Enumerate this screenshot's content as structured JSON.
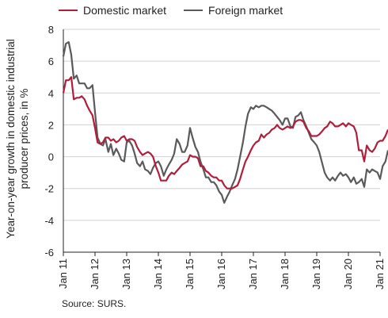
{
  "chart_data": {
    "type": "line",
    "xlabel": "",
    "ylabel": "Year-on-year growth in domestic industrial producer prices, in %",
    "ylim": [
      -6,
      8
    ],
    "yticks": [
      -6,
      -4,
      -2,
      0,
      2,
      4,
      6,
      8
    ],
    "xlim": [
      2011,
      2021
    ],
    "xticks": [
      "Jan 11",
      "Jan 12",
      "Jan 13",
      "Jan 14",
      "Jan 15",
      "Jan 16",
      "Jan 17",
      "Jan 18",
      "Jan 19",
      "Jan 20",
      "Jan 21"
    ],
    "grid": true,
    "legend_position": "top",
    "source": "Source: SURS.",
    "series": [
      {
        "name": "Domestic market",
        "color": "#b01e3c",
        "points": [
          [
            2011.0,
            4.0
          ],
          [
            2011.08,
            4.8
          ],
          [
            2011.17,
            4.8
          ],
          [
            2011.25,
            5.0
          ],
          [
            2011.33,
            3.6
          ],
          [
            2011.42,
            3.7
          ],
          [
            2011.5,
            3.7
          ],
          [
            2011.58,
            3.8
          ],
          [
            2011.67,
            3.6
          ],
          [
            2011.75,
            3.2
          ],
          [
            2011.83,
            2.9
          ],
          [
            2011.92,
            2.6
          ],
          [
            2012.0,
            1.8
          ],
          [
            2012.08,
            0.9
          ],
          [
            2012.17,
            0.8
          ],
          [
            2012.25,
            0.9
          ],
          [
            2012.33,
            1.2
          ],
          [
            2012.42,
            1.2
          ],
          [
            2012.5,
            1.0
          ],
          [
            2012.58,
            1.1
          ],
          [
            2012.67,
            0.9
          ],
          [
            2012.75,
            1.0
          ],
          [
            2012.83,
            1.2
          ],
          [
            2012.92,
            1.3
          ],
          [
            2013.0,
            1.0
          ],
          [
            2013.08,
            1.1
          ],
          [
            2013.17,
            1.1
          ],
          [
            2013.25,
            1.0
          ],
          [
            2013.33,
            0.6
          ],
          [
            2013.42,
            0.3
          ],
          [
            2013.5,
            0.1
          ],
          [
            2013.58,
            0.2
          ],
          [
            2013.67,
            0.3
          ],
          [
            2013.75,
            0.2
          ],
          [
            2013.83,
            0.0
          ],
          [
            2013.92,
            -0.6
          ],
          [
            2014.0,
            -1.0
          ],
          [
            2014.08,
            -1.5
          ],
          [
            2014.17,
            -1.5
          ],
          [
            2014.25,
            -1.5
          ],
          [
            2014.33,
            -1.2
          ],
          [
            2014.42,
            -1.0
          ],
          [
            2014.5,
            -1.1
          ],
          [
            2014.58,
            -0.9
          ],
          [
            2014.67,
            -0.7
          ],
          [
            2014.75,
            -0.5
          ],
          [
            2014.83,
            -0.4
          ],
          [
            2014.92,
            -0.3
          ],
          [
            2015.0,
            0.1
          ],
          [
            2015.08,
            0.0
          ],
          [
            2015.17,
            0.0
          ],
          [
            2015.25,
            -0.1
          ],
          [
            2015.33,
            -0.6
          ],
          [
            2015.42,
            -0.6
          ],
          [
            2015.5,
            -0.9
          ],
          [
            2015.58,
            -1.0
          ],
          [
            2015.67,
            -1.2
          ],
          [
            2015.75,
            -1.3
          ],
          [
            2015.83,
            -1.3
          ],
          [
            2015.92,
            -1.5
          ],
          [
            2016.0,
            -1.5
          ],
          [
            2016.08,
            -1.8
          ],
          [
            2016.17,
            -2.0
          ],
          [
            2016.25,
            -2.0
          ],
          [
            2016.33,
            -2.0
          ],
          [
            2016.42,
            -1.9
          ],
          [
            2016.5,
            -1.8
          ],
          [
            2016.58,
            -1.4
          ],
          [
            2016.67,
            -0.8
          ],
          [
            2016.75,
            -0.3
          ],
          [
            2016.83,
            0.0
          ],
          [
            2016.92,
            0.4
          ],
          [
            2017.0,
            0.7
          ],
          [
            2017.08,
            0.9
          ],
          [
            2017.17,
            1.0
          ],
          [
            2017.25,
            1.4
          ],
          [
            2017.33,
            1.2
          ],
          [
            2017.42,
            1.4
          ],
          [
            2017.5,
            1.5
          ],
          [
            2017.58,
            1.7
          ],
          [
            2017.67,
            1.8
          ],
          [
            2017.75,
            2.0
          ],
          [
            2017.83,
            1.8
          ],
          [
            2017.92,
            1.7
          ],
          [
            2018.0,
            1.8
          ],
          [
            2018.08,
            1.9
          ],
          [
            2018.17,
            1.8
          ],
          [
            2018.25,
            1.9
          ],
          [
            2018.33,
            2.2
          ],
          [
            2018.42,
            2.3
          ],
          [
            2018.5,
            2.3
          ],
          [
            2018.58,
            2.2
          ],
          [
            2018.67,
            1.8
          ],
          [
            2018.75,
            1.6
          ],
          [
            2018.83,
            1.3
          ],
          [
            2018.92,
            1.3
          ],
          [
            2019.0,
            1.3
          ],
          [
            2019.08,
            1.4
          ],
          [
            2019.17,
            1.6
          ],
          [
            2019.25,
            1.8
          ],
          [
            2019.33,
            1.9
          ],
          [
            2019.42,
            2.2
          ],
          [
            2019.5,
            2.1
          ],
          [
            2019.58,
            1.9
          ],
          [
            2019.67,
            1.9
          ],
          [
            2019.75,
            2.0
          ],
          [
            2019.83,
            2.1
          ],
          [
            2019.92,
            1.9
          ],
          [
            2020.0,
            2.1
          ],
          [
            2020.08,
            2.0
          ],
          [
            2020.17,
            1.9
          ],
          [
            2020.25,
            1.5
          ],
          [
            2020.33,
            0.4
          ],
          [
            2020.42,
            0.4
          ],
          [
            2020.5,
            -0.3
          ],
          [
            2020.58,
            0.7
          ],
          [
            2020.67,
            0.4
          ],
          [
            2020.75,
            0.3
          ],
          [
            2020.83,
            0.5
          ],
          [
            2020.92,
            0.9
          ],
          [
            2021.0,
            1.0
          ],
          [
            2021.08,
            1.0
          ],
          [
            2021.17,
            1.3
          ],
          [
            2021.25,
            1.7
          ]
        ]
      },
      {
        "name": "Foreign market",
        "color": "#5a5a5a",
        "points": [
          [
            2011.0,
            6.3
          ],
          [
            2011.08,
            7.1
          ],
          [
            2011.17,
            7.2
          ],
          [
            2011.25,
            6.4
          ],
          [
            2011.33,
            4.9
          ],
          [
            2011.42,
            5.1
          ],
          [
            2011.5,
            4.6
          ],
          [
            2011.58,
            4.6
          ],
          [
            2011.67,
            4.6
          ],
          [
            2011.75,
            4.3
          ],
          [
            2011.83,
            4.3
          ],
          [
            2011.92,
            4.5
          ],
          [
            2012.0,
            2.8
          ],
          [
            2012.08,
            1.2
          ],
          [
            2012.17,
            0.8
          ],
          [
            2012.25,
            0.7
          ],
          [
            2012.33,
            1.1
          ],
          [
            2012.42,
            0.3
          ],
          [
            2012.5,
            0.8
          ],
          [
            2012.58,
            0.1
          ],
          [
            2012.67,
            0.5
          ],
          [
            2012.75,
            0.2
          ],
          [
            2012.83,
            -0.2
          ],
          [
            2012.92,
            -0.3
          ],
          [
            2013.0,
            0.9
          ],
          [
            2013.08,
            1.0
          ],
          [
            2013.17,
            0.7
          ],
          [
            2013.25,
            0.2
          ],
          [
            2013.33,
            -0.4
          ],
          [
            2013.42,
            -0.6
          ],
          [
            2013.5,
            -0.3
          ],
          [
            2013.58,
            -0.8
          ],
          [
            2013.67,
            -0.9
          ],
          [
            2013.75,
            -1.1
          ],
          [
            2013.83,
            -0.7
          ],
          [
            2013.92,
            -0.4
          ],
          [
            2014.0,
            -0.3
          ],
          [
            2014.08,
            -0.6
          ],
          [
            2014.17,
            -1.2
          ],
          [
            2014.25,
            -0.8
          ],
          [
            2014.33,
            -0.5
          ],
          [
            2014.42,
            -0.2
          ],
          [
            2014.5,
            0.2
          ],
          [
            2014.58,
            1.1
          ],
          [
            2014.67,
            0.8
          ],
          [
            2014.75,
            0.3
          ],
          [
            2014.83,
            0.3
          ],
          [
            2014.92,
            0.7
          ],
          [
            2015.0,
            1.8
          ],
          [
            2015.08,
            1.2
          ],
          [
            2015.17,
            0.6
          ],
          [
            2015.25,
            0.3
          ],
          [
            2015.33,
            -0.3
          ],
          [
            2015.42,
            -0.8
          ],
          [
            2015.5,
            -1.3
          ],
          [
            2015.58,
            -1.3
          ],
          [
            2015.67,
            -1.6
          ],
          [
            2015.75,
            -1.6
          ],
          [
            2015.83,
            -1.8
          ],
          [
            2015.92,
            -2.2
          ],
          [
            2016.0,
            -2.4
          ],
          [
            2016.08,
            -2.9
          ],
          [
            2016.17,
            -2.5
          ],
          [
            2016.25,
            -2.2
          ],
          [
            2016.33,
            -1.8
          ],
          [
            2016.42,
            -1.4
          ],
          [
            2016.5,
            -0.8
          ],
          [
            2016.58,
            0.0
          ],
          [
            2016.67,
            0.9
          ],
          [
            2016.75,
            1.9
          ],
          [
            2016.83,
            2.7
          ],
          [
            2016.92,
            3.1
          ],
          [
            2017.0,
            3.0
          ],
          [
            2017.08,
            3.2
          ],
          [
            2017.17,
            3.1
          ],
          [
            2017.25,
            3.2
          ],
          [
            2017.33,
            3.2
          ],
          [
            2017.42,
            3.1
          ],
          [
            2017.5,
            3.0
          ],
          [
            2017.58,
            2.9
          ],
          [
            2017.67,
            2.7
          ],
          [
            2017.75,
            2.5
          ],
          [
            2017.83,
            2.3
          ],
          [
            2017.92,
            2.0
          ],
          [
            2018.0,
            2.4
          ],
          [
            2018.08,
            2.4
          ],
          [
            2018.17,
            1.9
          ],
          [
            2018.25,
            1.8
          ],
          [
            2018.33,
            2.5
          ],
          [
            2018.42,
            2.6
          ],
          [
            2018.5,
            2.8
          ],
          [
            2018.58,
            2.3
          ],
          [
            2018.67,
            1.9
          ],
          [
            2018.75,
            1.5
          ],
          [
            2018.83,
            1.1
          ],
          [
            2018.92,
            0.9
          ],
          [
            2019.0,
            0.7
          ],
          [
            2019.08,
            0.3
          ],
          [
            2019.17,
            -0.4
          ],
          [
            2019.25,
            -1.0
          ],
          [
            2019.33,
            -1.3
          ],
          [
            2019.42,
            -1.5
          ],
          [
            2019.5,
            -1.3
          ],
          [
            2019.58,
            -1.5
          ],
          [
            2019.67,
            -1.2
          ],
          [
            2019.75,
            -1.0
          ],
          [
            2019.83,
            -1.2
          ],
          [
            2019.92,
            -1.1
          ],
          [
            2020.0,
            -1.3
          ],
          [
            2020.08,
            -1.6
          ],
          [
            2020.17,
            -1.3
          ],
          [
            2020.25,
            -1.7
          ],
          [
            2020.33,
            -1.6
          ],
          [
            2020.42,
            -1.4
          ],
          [
            2020.5,
            -1.9
          ],
          [
            2020.58,
            -0.8
          ],
          [
            2020.67,
            -1.0
          ],
          [
            2020.75,
            -0.8
          ],
          [
            2020.83,
            -0.9
          ],
          [
            2020.92,
            -1.0
          ],
          [
            2021.0,
            -1.4
          ],
          [
            2021.08,
            -0.6
          ],
          [
            2021.17,
            -0.3
          ],
          [
            2021.25,
            0.4
          ]
        ]
      }
    ]
  }
}
